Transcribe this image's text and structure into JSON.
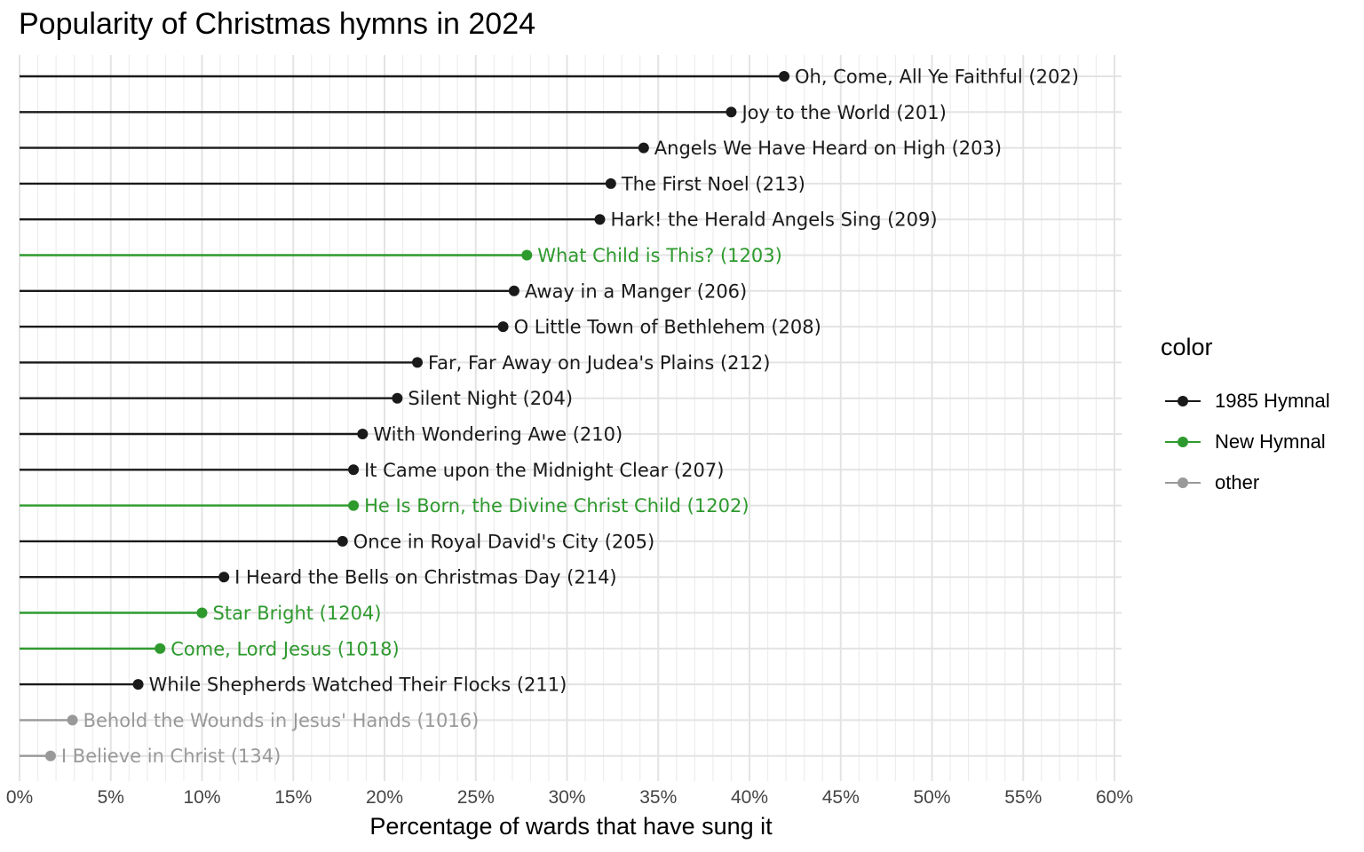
{
  "chart_data": {
    "type": "lollipop",
    "title": "Popularity of Christmas hymns in 2024",
    "xlabel": "Percentage of wards that have sung it",
    "ylabel": "",
    "xlim": [
      0,
      60
    ],
    "x_ticks": [
      "0%",
      "5%",
      "10%",
      "15%",
      "20%",
      "25%",
      "30%",
      "35%",
      "40%",
      "45%",
      "50%",
      "55%",
      "60%"
    ],
    "grid": true,
    "legend": {
      "title": "color",
      "position": "right",
      "entries": [
        {
          "name": "1985 Hymnal",
          "color": "#1a1a1a"
        },
        {
          "name": "New Hymnal",
          "color": "#2e9a2e"
        },
        {
          "name": "other",
          "color": "#999999"
        }
      ]
    },
    "points": [
      {
        "label": "Oh, Come, All Ye Faithful (202)",
        "value": 41.9,
        "group": "1985 Hymnal"
      },
      {
        "label": "Joy to the World (201)",
        "value": 39.0,
        "group": "1985 Hymnal"
      },
      {
        "label": "Angels We Have Heard on High (203)",
        "value": 34.2,
        "group": "1985 Hymnal"
      },
      {
        "label": "The First Noel (213)",
        "value": 32.4,
        "group": "1985 Hymnal"
      },
      {
        "label": "Hark! the Herald Angels Sing (209)",
        "value": 31.8,
        "group": "1985 Hymnal"
      },
      {
        "label": "What Child is This? (1203)",
        "value": 27.8,
        "group": "New Hymnal"
      },
      {
        "label": "Away in a Manger (206)",
        "value": 27.1,
        "group": "1985 Hymnal"
      },
      {
        "label": "O Little Town of Bethlehem (208)",
        "value": 26.5,
        "group": "1985 Hymnal"
      },
      {
        "label": "Far, Far Away on Judea's Plains (212)",
        "value": 21.8,
        "group": "1985 Hymnal"
      },
      {
        "label": "Silent Night (204)",
        "value": 20.7,
        "group": "1985 Hymnal"
      },
      {
        "label": "With Wondering Awe (210)",
        "value": 18.8,
        "group": "1985 Hymnal"
      },
      {
        "label": "It Came upon the Midnight Clear (207)",
        "value": 18.3,
        "group": "1985 Hymnal"
      },
      {
        "label": "He Is Born, the Divine Christ Child (1202)",
        "value": 18.3,
        "group": "New Hymnal"
      },
      {
        "label": "Once in Royal David's City (205)",
        "value": 17.7,
        "group": "1985 Hymnal"
      },
      {
        "label": "I Heard the Bells on Christmas Day (214)",
        "value": 11.2,
        "group": "1985 Hymnal"
      },
      {
        "label": "Star Bright (1204)",
        "value": 10.0,
        "group": "New Hymnal"
      },
      {
        "label": "Come, Lord Jesus (1018)",
        "value": 7.7,
        "group": "New Hymnal"
      },
      {
        "label": "While Shepherds Watched Their Flocks (211)",
        "value": 6.5,
        "group": "1985 Hymnal"
      },
      {
        "label": "Behold the Wounds in Jesus' Hands (1016)",
        "value": 2.9,
        "group": "other"
      },
      {
        "label": "I Believe in Christ (134)",
        "value": 1.7,
        "group": "other"
      }
    ]
  }
}
